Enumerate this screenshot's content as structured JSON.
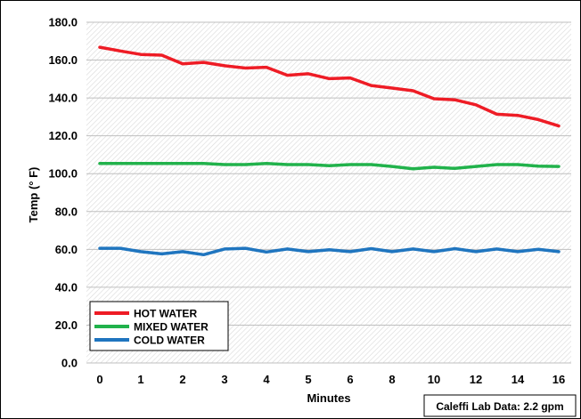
{
  "chart_data": {
    "type": "line",
    "title": "",
    "xlabel": "Minutes",
    "ylabel": "Temp (° F)",
    "xlim": [
      0,
      16
    ],
    "ylim": [
      0,
      180
    ],
    "x_ticks": [
      0,
      1,
      2,
      3,
      4,
      5,
      6,
      8,
      10,
      12,
      14,
      16
    ],
    "y_ticks": [
      "0.0",
      "20.0",
      "40.0",
      "60.0",
      "80.0",
      "100.0",
      "120.0",
      "140.0",
      "160.0",
      "180.0"
    ],
    "grid": "dense hatched background",
    "legend_position": "bottom-left",
    "annotation": "Caleffi Lab Data: 2.2 gpm",
    "x": [
      0,
      0.5,
      1,
      1.5,
      2,
      2.5,
      3,
      3.5,
      4,
      4.5,
      5,
      5.5,
      6,
      7,
      8,
      9,
      10,
      11,
      12,
      13,
      14,
      15,
      16
    ],
    "series": [
      {
        "name": "HOT WATER",
        "color": "#ee1c25",
        "values": [
          166.8,
          164.8,
          163.0,
          162.6,
          158.0,
          158.8,
          157.0,
          155.8,
          156.2,
          152.0,
          152.8,
          150.2,
          150.6,
          146.6,
          145.2,
          143.8,
          139.6,
          139.0,
          136.4,
          131.4,
          130.8,
          128.6,
          125.2
        ]
      },
      {
        "name": "MIXED WATER",
        "color": "#21b24b",
        "values": [
          105.4,
          105.4,
          105.4,
          105.4,
          105.4,
          105.4,
          104.8,
          104.8,
          105.4,
          104.8,
          104.8,
          104.2,
          104.8,
          104.8,
          103.8,
          102.6,
          103.4,
          102.8,
          103.8,
          104.8,
          104.8,
          104.0,
          103.8
        ]
      },
      {
        "name": "COLD WATER",
        "color": "#1f75bf",
        "values": [
          60.6,
          60.6,
          58.8,
          57.6,
          58.8,
          57.2,
          60.2,
          60.6,
          58.6,
          60.2,
          58.8,
          59.8,
          58.8,
          60.4,
          58.8,
          60.2,
          58.8,
          60.4,
          58.8,
          60.2,
          58.8,
          60.0,
          58.8
        ]
      }
    ]
  }
}
